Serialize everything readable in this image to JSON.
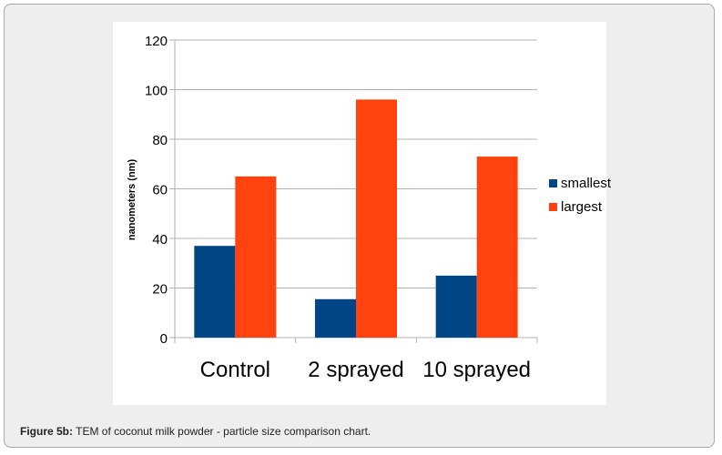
{
  "caption": {
    "label": "Figure 5b:",
    "text": " TEM of coconut milk powder - particle size comparison chart."
  },
  "chart_data": {
    "type": "bar",
    "categories": [
      "Control",
      "2 sprayed",
      "10 sprayed"
    ],
    "series": [
      {
        "name": "smallest",
        "values": [
          37,
          15.5,
          25
        ],
        "color": "#004586"
      },
      {
        "name": "largest",
        "values": [
          65,
          96,
          73
        ],
        "color": "#ff420e"
      }
    ],
    "title": "",
    "xlabel": "",
    "ylabel": "nanometers (nm)",
    "ylim": [
      0,
      120
    ],
    "yticks": [
      0,
      20,
      40,
      60,
      80,
      100,
      120
    ],
    "grid": true,
    "legend": "right"
  }
}
